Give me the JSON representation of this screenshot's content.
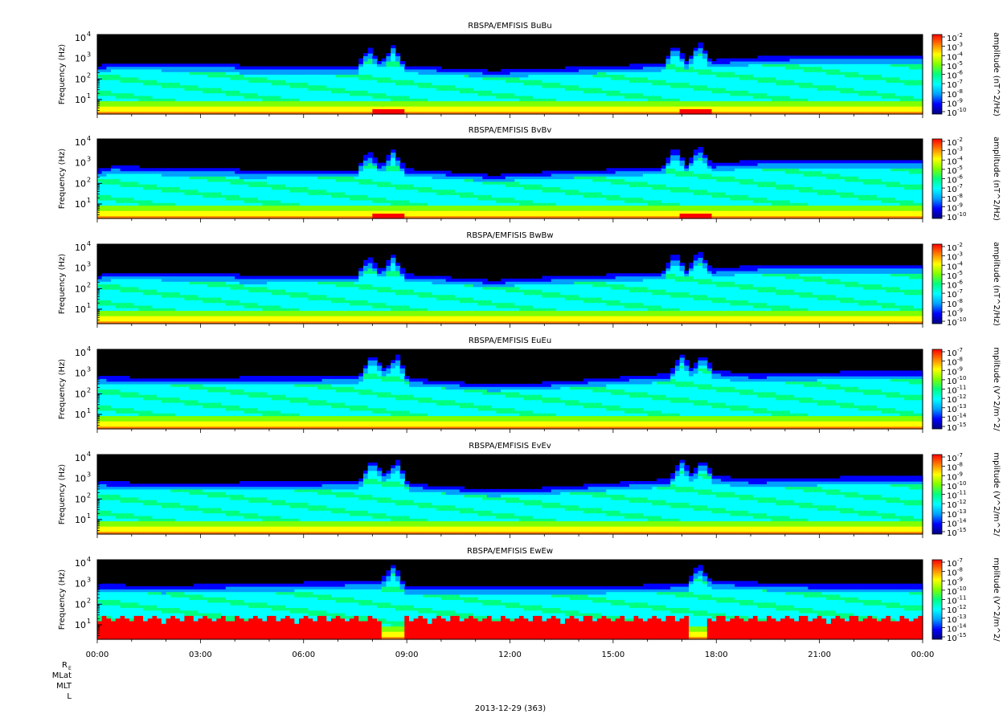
{
  "chart_data": {
    "type": "heatmap",
    "x_ticks": [
      "00:00",
      "03:00",
      "06:00",
      "09:00",
      "12:00",
      "15:00",
      "18:00",
      "21:00",
      "00:00"
    ],
    "x_range_hours": [
      0,
      24
    ],
    "date_label": "2013-12-29 (363)",
    "ephemeris_labels": [
      "R",
      "MLat",
      "MLT",
      "L"
    ],
    "ephemeris_subscript": "E",
    "y_log_scale": true,
    "colormap": [
      "#000080",
      "#0000ff",
      "#00a0ff",
      "#00ffff",
      "#00ff80",
      "#80ff00",
      "#ffff00",
      "#ff8000",
      "#ff0000"
    ],
    "panels": [
      {
        "title": "RBSPA/EMFISIS  BuBu",
        "ylabel": "Frequency (Hz)",
        "y_ticks": [
          "10",
          "10",
          "10",
          "10"
        ],
        "y_tick_exp": [
          "1",
          "2",
          "3",
          "4"
        ],
        "colorbar_label": "amplitude (nT^2/Hz)",
        "colorbar_ticks": [
          "10",
          "10",
          "10",
          "10",
          "10",
          "10",
          "10",
          "10",
          "10"
        ],
        "colorbar_exp": [
          "-2",
          "-3",
          "-4",
          "-5",
          "-6",
          "-7",
          "-8",
          "-9",
          "-10"
        ],
        "band": [
          [
            0,
            2.55
          ],
          [
            0.5,
            2.75
          ],
          [
            2,
            2.7
          ],
          [
            4,
            2.7
          ],
          [
            4.2,
            2.55
          ],
          [
            7.5,
            2.55
          ],
          [
            8.2,
            2.75
          ],
          [
            9,
            2.6
          ],
          [
            11.5,
            2.35
          ],
          [
            13,
            2.45
          ],
          [
            16.5,
            2.7
          ],
          [
            17.8,
            2.85
          ],
          [
            19,
            3.0
          ],
          [
            21,
            3.1
          ],
          [
            24,
            3.1
          ]
        ],
        "spikes": [
          [
            7.9,
            3.5
          ],
          [
            8.6,
            3.6
          ],
          [
            16.8,
            3.7
          ],
          [
            17.5,
            3.8
          ]
        ],
        "low_hot": true
      },
      {
        "title": "RBSPA/EMFISIS  BvBv",
        "ylabel": "Frequency (Hz)",
        "y_ticks": [
          "10",
          "10",
          "10",
          "10"
        ],
        "y_tick_exp": [
          "1",
          "2",
          "3",
          "4"
        ],
        "colorbar_label": "amplitude (nT^2/Hz)",
        "colorbar_ticks": [
          "10",
          "10",
          "10",
          "10",
          "10",
          "10",
          "10",
          "10",
          "10"
        ],
        "colorbar_exp": [
          "-2",
          "-3",
          "-4",
          "-5",
          "-6",
          "-7",
          "-8",
          "-9",
          "-10"
        ],
        "band": [
          [
            0,
            2.6
          ],
          [
            0.5,
            2.8
          ],
          [
            2,
            2.7
          ],
          [
            4,
            2.7
          ],
          [
            4.2,
            2.55
          ],
          [
            7.5,
            2.6
          ],
          [
            8.2,
            2.8
          ],
          [
            9,
            2.65
          ],
          [
            11.5,
            2.35
          ],
          [
            13,
            2.5
          ],
          [
            16.5,
            2.75
          ],
          [
            17.8,
            2.9
          ],
          [
            19,
            3.05
          ],
          [
            21,
            3.1
          ],
          [
            24,
            3.1
          ]
        ],
        "spikes": [
          [
            7.9,
            3.5
          ],
          [
            8.6,
            3.6
          ],
          [
            16.8,
            3.7
          ],
          [
            17.5,
            3.8
          ]
        ],
        "low_hot": true
      },
      {
        "title": "RBSPA/EMFISIS  BwBw",
        "ylabel": "Frequency (Hz)",
        "y_ticks": [
          "10",
          "10",
          "10",
          "10"
        ],
        "y_tick_exp": [
          "1",
          "2",
          "3",
          "4"
        ],
        "colorbar_label": "amplitude (nT^2/Hz)",
        "colorbar_ticks": [
          "10",
          "10",
          "10",
          "10",
          "10",
          "10",
          "10",
          "10",
          "10"
        ],
        "colorbar_exp": [
          "-2",
          "-3",
          "-4",
          "-5",
          "-6",
          "-7",
          "-8",
          "-9",
          "-10"
        ],
        "band": [
          [
            0,
            2.6
          ],
          [
            0.5,
            2.75
          ],
          [
            2,
            2.7
          ],
          [
            4,
            2.7
          ],
          [
            4.2,
            2.55
          ],
          [
            7.5,
            2.6
          ],
          [
            8.2,
            2.8
          ],
          [
            9,
            2.65
          ],
          [
            11.5,
            2.35
          ],
          [
            13,
            2.5
          ],
          [
            16.5,
            2.75
          ],
          [
            17.8,
            2.9
          ],
          [
            19,
            3.05
          ],
          [
            21,
            3.1
          ],
          [
            24,
            3.1
          ]
        ],
        "spikes": [
          [
            7.9,
            3.5
          ],
          [
            8.6,
            3.6
          ],
          [
            16.8,
            3.7
          ],
          [
            17.5,
            3.8
          ]
        ],
        "low_hot": false
      },
      {
        "title": "RBSPA/EMFISIS  EuEu",
        "ylabel": "Frequency (Hz)",
        "y_ticks": [
          "10",
          "10",
          "10",
          "10"
        ],
        "y_tick_exp": [
          "1",
          "2",
          "3",
          "4"
        ],
        "colorbar_label": "mplitude (V^2/m^2/",
        "colorbar_ticks": [
          "10",
          "10",
          "10",
          "10",
          "10",
          "10",
          "10",
          "10",
          "10"
        ],
        "colorbar_exp": [
          "-7",
          "-8",
          "-9",
          "-10",
          "-11",
          "-12",
          "-13",
          "-14",
          "-15"
        ],
        "band": [
          [
            0,
            2.8
          ],
          [
            1,
            2.75
          ],
          [
            4,
            2.75
          ],
          [
            7.5,
            2.8
          ],
          [
            8.3,
            3.2
          ],
          [
            9,
            2.7
          ],
          [
            11.5,
            2.4
          ],
          [
            13,
            2.5
          ],
          [
            16.5,
            2.9
          ],
          [
            17.8,
            3.1
          ],
          [
            19,
            2.9
          ],
          [
            21,
            3.0
          ],
          [
            24,
            3.05
          ]
        ],
        "spikes": [
          [
            8.0,
            3.9
          ],
          [
            8.7,
            3.9
          ],
          [
            17.0,
            3.9
          ],
          [
            17.6,
            3.9
          ]
        ],
        "low_hot": false
      },
      {
        "title": "RBSPA/EMFISIS  EvEv",
        "ylabel": "Frequency (Hz)",
        "y_ticks": [
          "10",
          "10",
          "10",
          "10"
        ],
        "y_tick_exp": [
          "1",
          "2",
          "3",
          "4"
        ],
        "colorbar_label": "mplitude (V^2/m^2/",
        "colorbar_ticks": [
          "10",
          "10",
          "10",
          "10",
          "10",
          "10",
          "10",
          "10",
          "10"
        ],
        "colorbar_exp": [
          "-7",
          "-8",
          "-9",
          "-10",
          "-11",
          "-12",
          "-13",
          "-14",
          "-15"
        ],
        "band": [
          [
            0,
            2.8
          ],
          [
            1,
            2.75
          ],
          [
            4,
            2.75
          ],
          [
            7.5,
            2.8
          ],
          [
            8.3,
            3.2
          ],
          [
            9,
            2.7
          ],
          [
            11.5,
            2.4
          ],
          [
            13,
            2.5
          ],
          [
            16.5,
            2.9
          ],
          [
            17.8,
            3.1
          ],
          [
            19,
            2.9
          ],
          [
            21,
            3.0
          ],
          [
            24,
            3.05
          ]
        ],
        "spikes": [
          [
            8.0,
            3.9
          ],
          [
            8.7,
            3.9
          ],
          [
            17.0,
            3.9
          ],
          [
            17.6,
            3.9
          ]
        ],
        "low_hot": false
      },
      {
        "title": "RBSPA/EMFISIS  EwEw",
        "ylabel": "Frequency (Hz)",
        "y_ticks": [
          "10",
          "10",
          "10",
          "10"
        ],
        "y_tick_exp": [
          "1",
          "2",
          "3",
          "4"
        ],
        "colorbar_label": "mplitude (V^2/m^2/",
        "colorbar_ticks": [
          "10",
          "10",
          "10",
          "10",
          "10",
          "10",
          "10",
          "10",
          "10"
        ],
        "colorbar_exp": [
          "-7",
          "-8",
          "-9",
          "-10",
          "-11",
          "-12",
          "-13",
          "-14",
          "-15"
        ],
        "band": [
          [
            0,
            2.9
          ],
          [
            2,
            2.85
          ],
          [
            8.3,
            3.1
          ],
          [
            9,
            2.8
          ],
          [
            13,
            2.8
          ],
          [
            16.5,
            2.9
          ],
          [
            17.8,
            3.1
          ],
          [
            21,
            2.9
          ],
          [
            24,
            2.9
          ]
        ],
        "spikes": [
          [
            8.6,
            3.9
          ],
          [
            17.5,
            3.9
          ]
        ],
        "low_hot": false,
        "red_floor": true
      }
    ]
  }
}
